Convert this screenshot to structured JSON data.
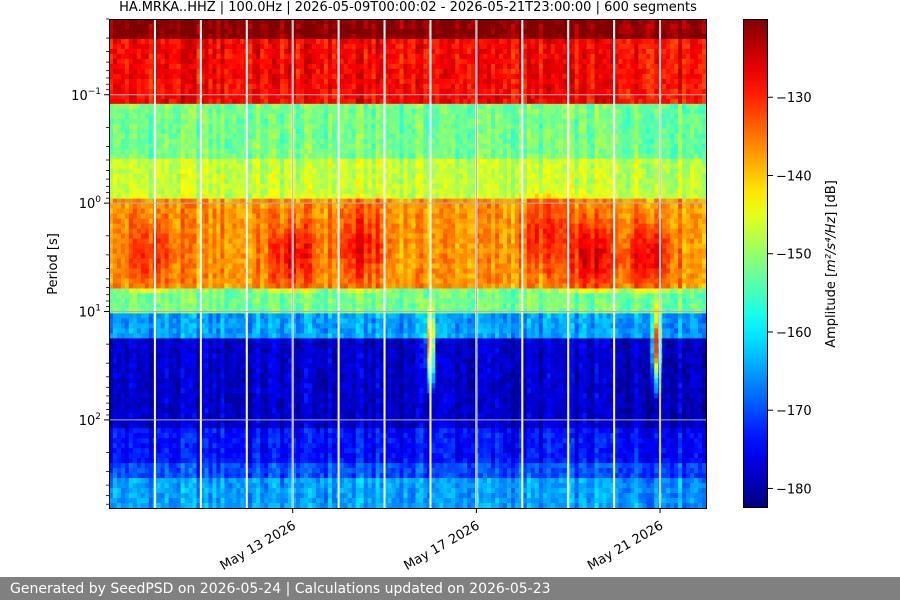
{
  "chart_data": {
    "type": "heatmap",
    "title": "HA.MRKA..HHZ | 100.0Hz | 2026-05-09T00:00:02 - 2026-05-21T23:00:00 | 600 segments",
    "ylabel": "Period [s]",
    "xlabel": "",
    "y_scale": "log",
    "y_inverted": true,
    "ylim": [
      0.02,
      650
    ],
    "xlim": [
      "2026-05-09T00:00:02",
      "2026-05-22T00:00:00"
    ],
    "yticks": [
      {
        "value": 0.1,
        "base": "10",
        "exp": "−1"
      },
      {
        "value": 1,
        "base": "10",
        "exp": "0"
      },
      {
        "value": 10,
        "base": "10",
        "exp": "1"
      },
      {
        "value": 100,
        "base": "10",
        "exp": "2"
      }
    ],
    "xticks": [
      {
        "date": "2026-05-13",
        "label": "May 13 2026"
      },
      {
        "date": "2026-05-17",
        "label": "May 17 2026"
      },
      {
        "date": "2026-05-21",
        "label": "May 21 2026"
      }
    ],
    "grid": true,
    "colormap": "jet",
    "colorbar": {
      "label_prefix": "Amplitude [",
      "label_math": "m²/s⁴/Hz",
      "label_suffix": "] [dB]",
      "range": [
        -182.5,
        -120
      ],
      "ticks": [
        -130,
        -140,
        -150,
        -160,
        -170,
        -180
      ]
    },
    "gaps": [
      "2026-05-10T00:00:00",
      "2026-05-11T00:00:00",
      "2026-05-12T00:00:00",
      "2026-05-13T00:00:00",
      "2026-05-14T00:00:00",
      "2026-05-15T00:00:00",
      "2026-05-16T00:00:00",
      "2026-05-17T00:00:00",
      "2026-05-18T00:00:00",
      "2026-05-19T00:00:00",
      "2026-05-20T00:00:00",
      "2026-05-21T00:00:00"
    ],
    "bands": [
      {
        "period_from": 0.02,
        "period_to": 0.03,
        "db": -120
      },
      {
        "period_from": 0.03,
        "period_to": 0.12,
        "db": -128
      },
      {
        "period_from": 0.12,
        "period_to": 0.4,
        "db": -152
      },
      {
        "period_from": 0.4,
        "period_to": 0.9,
        "db": -147
      },
      {
        "period_from": 0.9,
        "period_to": 6,
        "db": -137
      },
      {
        "period_from": 6,
        "period_to": 10,
        "db": -152
      },
      {
        "period_from": 10,
        "period_to": 18,
        "db": -165
      },
      {
        "period_from": 18,
        "period_to": 120,
        "db": -178
      },
      {
        "period_from": 120,
        "period_to": 250,
        "db": -174
      },
      {
        "period_from": 250,
        "period_to": 350,
        "db": -170
      },
      {
        "period_from": 350,
        "period_to": 650,
        "db": -165
      }
    ],
    "energy_peaks": [
      {
        "time": "2026-05-09T21:00:00",
        "period": 3,
        "db": -130
      },
      {
        "time": "2026-05-13T00:00:00",
        "period": 3,
        "db": -127
      },
      {
        "time": "2026-05-14T12:00:00",
        "period": 2.5,
        "db": -128
      },
      {
        "time": "2026-05-18T12:00:00",
        "period": 2,
        "db": -130
      },
      {
        "time": "2026-05-19T12:00:00",
        "period": 3,
        "db": -126
      },
      {
        "time": "2026-05-20T18:00:00",
        "period": 3,
        "db": -125
      }
    ],
    "events": [
      {
        "time": "2026-05-16T00:00:00",
        "period": 20,
        "db": -130
      },
      {
        "time": "2026-05-20T22:00:00",
        "period": 20,
        "db": -130
      }
    ]
  },
  "footer": {
    "text": "Generated by SeedPSD on 2026-05-24 | Calculations updated on 2026-05-23"
  }
}
